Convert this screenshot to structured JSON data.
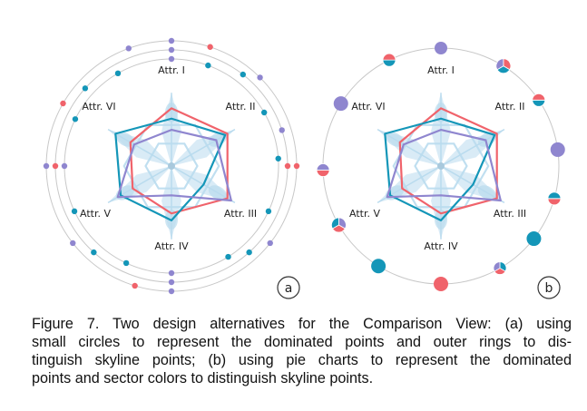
{
  "colors": {
    "red": "#f0636b",
    "teal": "#1496b8",
    "purple": "#8f86cf",
    "ring": "#c8c8c8",
    "axis_fill": "#b9dbee"
  },
  "axes": [
    "Attr. I",
    "Attr. II",
    "Attr. III",
    "Attr. IV",
    "Attr. V",
    "Attr. VI"
  ],
  "panels": [
    {
      "tag": "a",
      "title": "small circles with outer rings"
    },
    {
      "tag": "b",
      "title": "pie charts with sector colors"
    }
  ],
  "series": [
    {
      "color": "red",
      "values": [
        0.67,
        0.75,
        0.75,
        0.55,
        0.52,
        0.55
      ]
    },
    {
      "color": "teal",
      "values": [
        0.55,
        0.72,
        0.43,
        0.63,
        0.68,
        0.75
      ]
    },
    {
      "color": "purple",
      "values": [
        0.42,
        0.6,
        0.8,
        0.34,
        0.72,
        0.5
      ]
    }
  ],
  "panel_a_points": [
    {
      "angle": 0,
      "ring": 3,
      "color": "purple"
    },
    {
      "angle": 0,
      "ring": 2,
      "color": "purple"
    },
    {
      "angle": 0,
      "ring": 1,
      "color": "purple"
    },
    {
      "angle": 18,
      "ring": 3,
      "color": "red"
    },
    {
      "angle": 20,
      "ring": 1,
      "color": "teal"
    },
    {
      "angle": 38,
      "ring": 2,
      "color": "teal"
    },
    {
      "angle": 45,
      "ring": 3,
      "color": "purple"
    },
    {
      "angle": 60,
      "ring": 1,
      "color": "teal"
    },
    {
      "angle": 72,
      "ring": 2,
      "color": "purple"
    },
    {
      "angle": 86,
      "ring": 1,
      "color": "teal"
    },
    {
      "angle": 90,
      "ring": 2,
      "color": "red"
    },
    {
      "angle": 90,
      "ring": 3,
      "color": "red"
    },
    {
      "angle": 115,
      "ring": 1,
      "color": "teal"
    },
    {
      "angle": 128,
      "ring": 3,
      "color": "purple"
    },
    {
      "angle": 148,
      "ring": 1,
      "color": "teal"
    },
    {
      "angle": 138,
      "ring": 2,
      "color": "teal"
    },
    {
      "angle": 180,
      "ring": 1,
      "color": "purple"
    },
    {
      "angle": 180,
      "ring": 2,
      "color": "purple"
    },
    {
      "angle": 180,
      "ring": 3,
      "color": "purple"
    },
    {
      "angle": 197,
      "ring": 3,
      "color": "red"
    },
    {
      "angle": 205,
      "ring": 1,
      "color": "teal"
    },
    {
      "angle": 222,
      "ring": 2,
      "color": "teal"
    },
    {
      "angle": 232,
      "ring": 3,
      "color": "purple"
    },
    {
      "angle": 245,
      "ring": 1,
      "color": "teal"
    },
    {
      "angle": 270,
      "ring": 3,
      "color": "purple"
    },
    {
      "angle": 270,
      "ring": 2,
      "color": "red"
    },
    {
      "angle": 270,
      "ring": 1,
      "color": "purple"
    },
    {
      "angle": 296,
      "ring": 1,
      "color": "teal"
    },
    {
      "angle": 312,
      "ring": 2,
      "color": "teal"
    },
    {
      "angle": 300,
      "ring": 3,
      "color": "red"
    },
    {
      "angle": 330,
      "ring": 1,
      "color": "teal"
    },
    {
      "angle": 340,
      "ring": 3,
      "color": "purple"
    }
  ],
  "panel_b_pies": [
    {
      "angle": 0,
      "r": 7,
      "style": "solid",
      "colors": [
        "purple"
      ]
    },
    {
      "angle": 32,
      "r": 8,
      "style": "thirds",
      "colors": [
        "red",
        "teal",
        "purple"
      ]
    },
    {
      "angle": 56,
      "r": 7,
      "style": "halves",
      "colors": [
        "teal",
        "red"
      ]
    },
    {
      "angle": 82,
      "r": 8,
      "style": "solid",
      "colors": [
        "purple"
      ]
    },
    {
      "angle": 106,
      "r": 7,
      "style": "halves",
      "colors": [
        "red",
        "teal"
      ]
    },
    {
      "angle": 128,
      "r": 8,
      "style": "solid",
      "colors": [
        "teal"
      ]
    },
    {
      "angle": 150,
      "r": 7,
      "style": "thirds",
      "colors": [
        "teal",
        "red",
        "purple"
      ]
    },
    {
      "angle": 180,
      "r": 8,
      "style": "solid",
      "colors": [
        "red"
      ]
    },
    {
      "angle": 212,
      "r": 8,
      "style": "solid",
      "colors": [
        "teal"
      ]
    },
    {
      "angle": 240,
      "r": 8,
      "style": "thirds",
      "colors": [
        "purple",
        "red",
        "teal"
      ]
    },
    {
      "angle": 268,
      "r": 7,
      "style": "halves",
      "colors": [
        "red",
        "purple"
      ]
    },
    {
      "angle": 302,
      "r": 8,
      "style": "solid",
      "colors": [
        "purple"
      ]
    },
    {
      "angle": 334,
      "r": 7,
      "style": "halves",
      "colors": [
        "teal",
        "red"
      ]
    },
    {
      "angle": 242,
      "r": 8,
      "style": "solid",
      "colors": [
        "purple"
      ],
      "skip": true
    },
    {
      "angle": 150,
      "r": 7,
      "style": "solid",
      "colors": [
        "red"
      ],
      "skip": true
    },
    {
      "angle": 12,
      "r": 8,
      "style": "solid",
      "colors": [
        "teal"
      ],
      "skip": true
    },
    {
      "angle": 110,
      "r": 7,
      "style": "halves",
      "colors": [
        "purple",
        "teal"
      ],
      "skip": true
    },
    {
      "angle": 226,
      "r": 8,
      "style": "thirds",
      "colors": [
        "teal",
        "purple",
        "red"
      ],
      "skip": true
    }
  ],
  "caption": {
    "lines": [
      "Figure 7.  Two design alternatives for the Comparison View: (a) using",
      "small circles to represent the dominated points and outer rings to dis-",
      "tinguish skyline points; (b) using pie charts to represent the dominated",
      "points and sector colors to distinguish skyline points."
    ]
  }
}
